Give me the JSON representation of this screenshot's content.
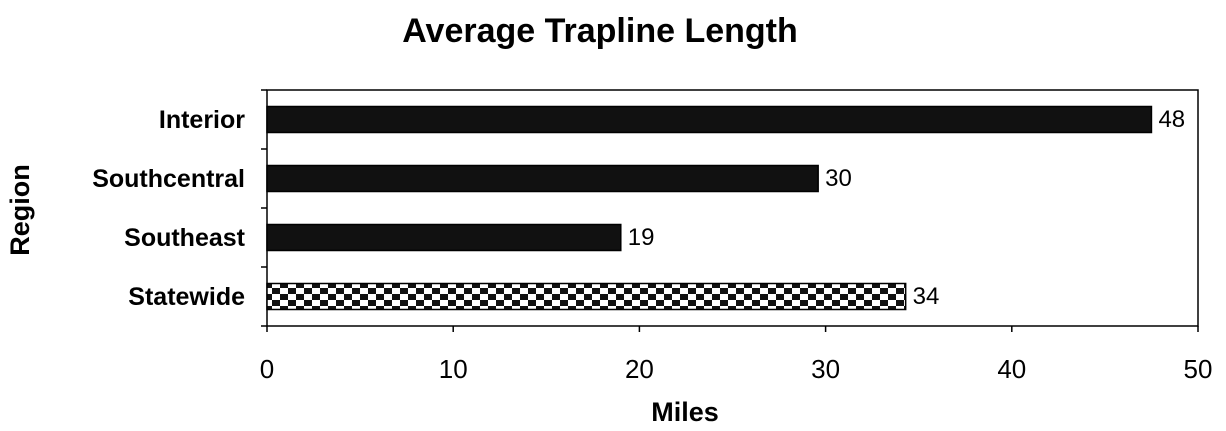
{
  "chart_data": {
    "type": "barh",
    "title": "Average Trapline Length",
    "xlabel": "Miles",
    "ylabel": "Region",
    "categories": [
      "Interior",
      "Southcentral",
      "Southeast",
      "Statewide"
    ],
    "values": [
      47.5,
      29.6,
      19,
      34.3
    ],
    "value_labels": [
      "48",
      "30",
      "19",
      "34"
    ],
    "colors": [
      "#111111",
      "#111111",
      "#111111",
      "checkered"
    ],
    "xlim": [
      0,
      50
    ],
    "xticks": [
      0,
      10,
      20,
      30,
      40,
      50
    ]
  }
}
